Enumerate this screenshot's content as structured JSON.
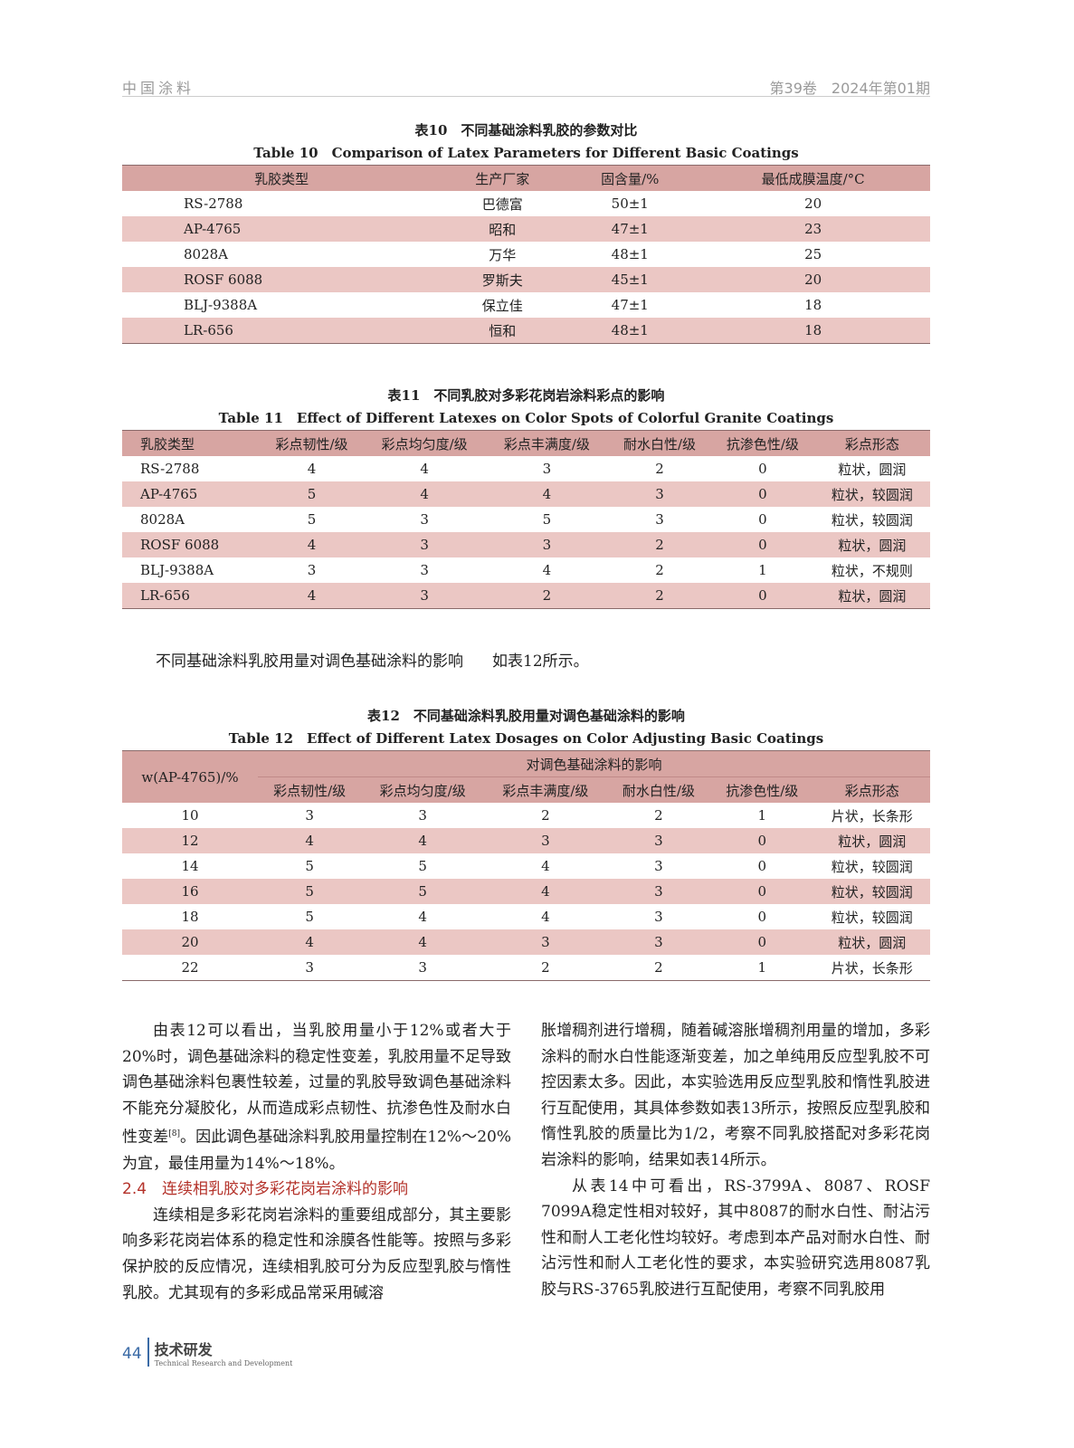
{
  "header": {
    "journal": "中国涂料",
    "issue": "第39卷　2024年第01期"
  },
  "table10": {
    "caption_cn": "表10　不同基础涂料乳胶的参数对比",
    "caption_en": "Table 10　Comparison of Latex Parameters for Different Basic Coatings",
    "headers": [
      "乳胶类型",
      "生产厂家",
      "固含量/%",
      "最低成膜温度/°C"
    ],
    "rows": [
      [
        "RS-2788",
        "巴德富",
        "50±1",
        "20"
      ],
      [
        "AP-4765",
        "昭和",
        "47±1",
        "23"
      ],
      [
        "8028A",
        "万华",
        "48±1",
        "25"
      ],
      [
        "ROSF 6088",
        "罗斯夫",
        "45±1",
        "20"
      ],
      [
        "BLJ-9388A",
        "保立佳",
        "47±1",
        "18"
      ],
      [
        "LR-656",
        "恒和",
        "48±1",
        "18"
      ]
    ]
  },
  "table11": {
    "caption_cn": "表11　不同乳胶对多彩花岗岩涂料彩点的影响",
    "caption_en": "Table 11　Effect of Different Latexes on Color Spots of Colorful Granite Coatings",
    "headers": [
      "乳胶类型",
      "彩点韧性/级",
      "彩点均匀度/级",
      "彩点丰满度/级",
      "耐水白性/级",
      "抗渗色性/级",
      "彩点形态"
    ],
    "rows": [
      [
        "RS-2788",
        "4",
        "4",
        "3",
        "2",
        "0",
        "粒状，圆润"
      ],
      [
        "AP-4765",
        "5",
        "4",
        "4",
        "3",
        "0",
        "粒状，较圆润"
      ],
      [
        "8028A",
        "5",
        "3",
        "5",
        "3",
        "0",
        "粒状，较圆润"
      ],
      [
        "ROSF 6088",
        "4",
        "3",
        "3",
        "2",
        "0",
        "粒状，圆润"
      ],
      [
        "BLJ-9388A",
        "3",
        "3",
        "4",
        "2",
        "1",
        "粒状，不规则"
      ],
      [
        "LR-656",
        "4",
        "3",
        "2",
        "2",
        "0",
        "粒状，圆润"
      ]
    ]
  },
  "note": {
    "text": "不同基础涂料乳胶用量对调色基础涂料的影响",
    "ref": "如表12所示。"
  },
  "table12": {
    "caption_cn": "表12　不同基础涂料乳胶用量对调色基础涂料的影响",
    "caption_en": "Table 12　Effect of Different Latex Dosages on Color Adjusting Basic Coatings",
    "row_header": "w(AP-4765)/%",
    "group_header": "对调色基础涂料的影响",
    "headers": [
      "彩点韧性/级",
      "彩点均匀度/级",
      "彩点丰满度/级",
      "耐水白性/级",
      "抗渗色性/级",
      "彩点形态"
    ],
    "rows": [
      [
        "10",
        "3",
        "3",
        "2",
        "2",
        "1",
        "片状，长条形"
      ],
      [
        "12",
        "4",
        "4",
        "3",
        "3",
        "0",
        "粒状，圆润"
      ],
      [
        "14",
        "5",
        "5",
        "4",
        "3",
        "0",
        "粒状，较圆润"
      ],
      [
        "16",
        "5",
        "5",
        "4",
        "3",
        "0",
        "粒状，较圆润"
      ],
      [
        "18",
        "5",
        "4",
        "4",
        "3",
        "0",
        "粒状，较圆润"
      ],
      [
        "20",
        "4",
        "4",
        "3",
        "3",
        "0",
        "粒状，圆润"
      ],
      [
        "22",
        "3",
        "3",
        "2",
        "2",
        "1",
        "片状，长条形"
      ]
    ]
  },
  "body": {
    "p1a": "由表12可以看出，当乳胶用量小于12%或者大于20%时，调色基础涂料的稳定性变差，乳胶用量不足导致调色基础涂料包裹性较差，过量的乳胶导致调色基础涂料不能充分凝胶化，从而造成彩点韧性、抗渗色性及耐水白性变差",
    "p1ref": "[8]",
    "p1b": "。因此调色基础涂料乳胶用量控制在12%～20%为宜，最佳用量为14%～18%。",
    "h24": "2.4　连续相乳胶对多彩花岗岩涂料的影响",
    "p2": "连续相是多彩花岗岩涂料的重要组成部分，其主要影响多彩花岗岩体系的稳定性和涂膜各性能等。按照与多彩保护胶的反应情况，连续相乳胶可分为反应型乳胶与惰性乳胶。尤其现有的多彩成品常采用碱溶",
    "p3": "胀增稠剂进行增稠，随着碱溶胀增稠剂用量的增加，多彩涂料的耐水白性能逐渐变差，加之单纯用反应型乳胶不可控因素太多。因此，本实验选用反应型乳胶和惰性乳胶进行互配使用，其具体参数如表13所示，按照反应型乳胶和惰性乳胶的质量比为1/2，考察不同乳胶搭配对多彩花岗岩涂料的影响，结果如表14所示。",
    "p4": "从表14中可看出，RS-3799A、8087、ROSF 7099A稳定性相对较好，其中8087的耐水白性、耐沾污性和耐人工老化性均较好。考虑到本产品对耐水白性、耐沾污性和耐人工老化性的要求，本实验研究选用8087乳胶与RS-3765乳胶进行互配使用，考察不同乳胶用"
  },
  "footer": {
    "page": "44",
    "section_cn": "技术研发",
    "section_en": "Technical Research and Development"
  }
}
